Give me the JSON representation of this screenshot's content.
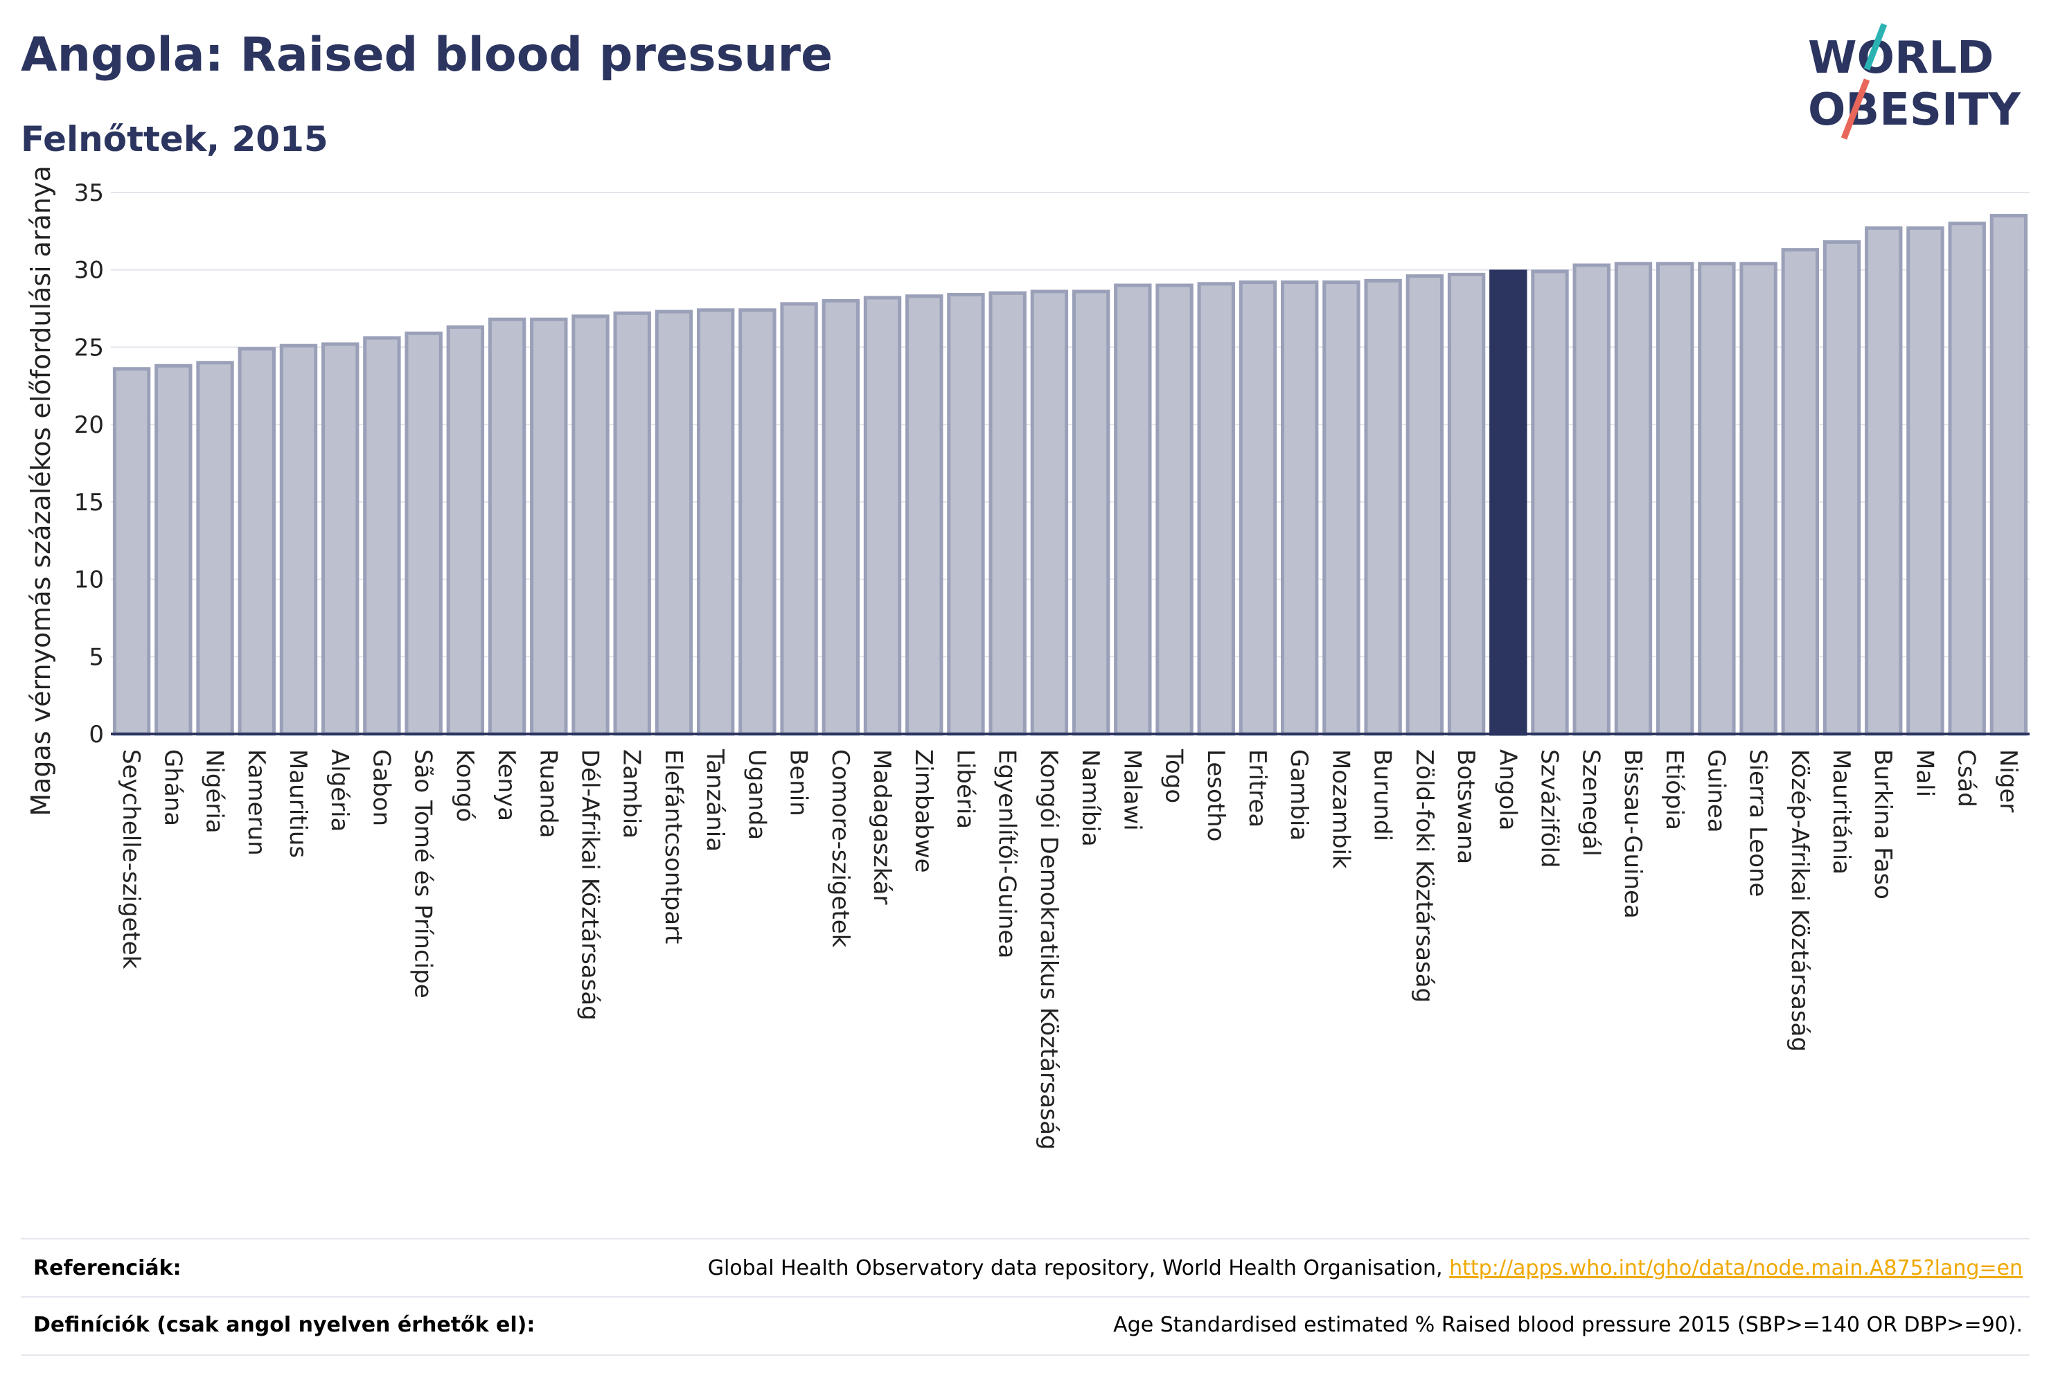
{
  "header": {
    "title": "Angola: Raised blood pressure",
    "subtitle": "Felnőttek, 2015"
  },
  "logo": {
    "line1": "WORLD",
    "line2": "OBESITY"
  },
  "colors": {
    "bar_default": "#bcc0cf",
    "bar_default_stroke": "#9aa0b8",
    "bar_highlight": "#2b3560",
    "text_dark": "#2b3560",
    "link": "#f0a800",
    "grid": "#e4e4ec"
  },
  "chart_data": {
    "type": "bar",
    "ylabel": "Magas vérnyomás százalékos előfordulási aránya",
    "ylim": [
      0,
      35
    ],
    "yticks": [
      0,
      5,
      10,
      15,
      20,
      25,
      30,
      35
    ],
    "grid": true,
    "highlight": "Angola",
    "categories": [
      "Seychelle-szigetek",
      "Ghána",
      "Nigéria",
      "Kamerun",
      "Mauritius",
      "Algéria",
      "Gabon",
      "São Tomé és Príncipe",
      "Kongó",
      "Kenya",
      "Ruanda",
      "Dél-Afrikai Köztársaság",
      "Zambia",
      "Elefántcsontpart",
      "Tanzánia",
      "Uganda",
      "Benin",
      "Comore-szigetek",
      "Madagaszkár",
      "Zimbabwe",
      "Libéria",
      "Egyenlítői-Guinea",
      "Kongói Demokratikus Köztársaság",
      "Namíbia",
      "Malawi",
      "Togo",
      "Lesotho",
      "Eritrea",
      "Gambia",
      "Mozambik",
      "Burundi",
      "Zöld-foki Köztársaság",
      "Botswana",
      "Angola",
      "Szváziföld",
      "Szenegál",
      "Bissau-Guinea",
      "Etiópia",
      "Guinea",
      "Sierra Leone",
      "Közép-Afrikai Köztársaság",
      "Mauritánia",
      "Burkina Faso",
      "Mali",
      "Csád",
      "Niger"
    ],
    "values": [
      23.6,
      23.8,
      24.0,
      24.9,
      25.1,
      25.2,
      25.6,
      25.9,
      26.3,
      26.8,
      26.8,
      27.0,
      27.2,
      27.3,
      27.4,
      27.4,
      27.8,
      28.0,
      28.2,
      28.3,
      28.4,
      28.5,
      28.6,
      28.6,
      29.0,
      29.0,
      29.1,
      29.2,
      29.2,
      29.2,
      29.3,
      29.6,
      29.7,
      29.9,
      29.9,
      30.3,
      30.4,
      30.4,
      30.4,
      30.4,
      31.3,
      31.8,
      32.7,
      32.7,
      33.0,
      33.5
    ]
  },
  "footer": {
    "ref_label": "Referenciák:",
    "ref_text": "Global Health Observatory data repository, World Health Organisation,",
    "ref_link": "http://apps.who.int/gho/data/node.main.A875?lang=en",
    "def_label": "Definíciók (csak angol nyelven érhetők el):",
    "def_text": "Age Standardised estimated % Raised blood pressure 2015 (SBP>=140 OR DBP>=90)."
  }
}
